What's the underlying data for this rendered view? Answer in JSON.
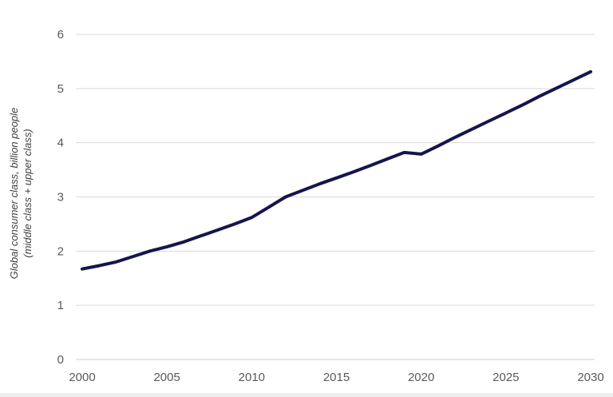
{
  "chart_data": {
    "type": "line",
    "ylabel_line1": "Global consumer class, billion people",
    "ylabel_line2": "(middle class + upper class)",
    "xlim": [
      2000,
      2030
    ],
    "ylim": [
      0,
      6
    ],
    "x_ticks": [
      2000,
      2005,
      2010,
      2015,
      2020,
      2025,
      2030
    ],
    "y_ticks": [
      0,
      1,
      2,
      3,
      4,
      5,
      6
    ],
    "grid": "horizontal",
    "legend_position": "none",
    "x": [
      2000,
      2001,
      2002,
      2003,
      2004,
      2005,
      2006,
      2007,
      2008,
      2009,
      2010,
      2011,
      2012,
      2013,
      2014,
      2015,
      2016,
      2017,
      2018,
      2019,
      2020,
      2021,
      2022,
      2023,
      2024,
      2025,
      2026,
      2027,
      2028,
      2029,
      2030
    ],
    "series": [
      {
        "name": "Global consumer class",
        "color": "#15154d",
        "values": [
          1.67,
          1.73,
          1.8,
          1.9,
          2.0,
          2.08,
          2.17,
          2.28,
          2.39,
          2.5,
          2.62,
          2.81,
          3.0,
          3.12,
          3.24,
          3.35,
          3.46,
          3.58,
          3.7,
          3.82,
          3.79,
          3.94,
          4.1,
          4.25,
          4.4,
          4.55,
          4.7,
          4.86,
          5.01,
          5.16,
          5.31
        ]
      }
    ],
    "colors": {
      "line": "#15154d",
      "grid": "#d9d9d9",
      "baseline": "#cfcfcf",
      "tick_text": "#595959",
      "axis_label_text": "#404040",
      "background": "#ffffff"
    }
  }
}
